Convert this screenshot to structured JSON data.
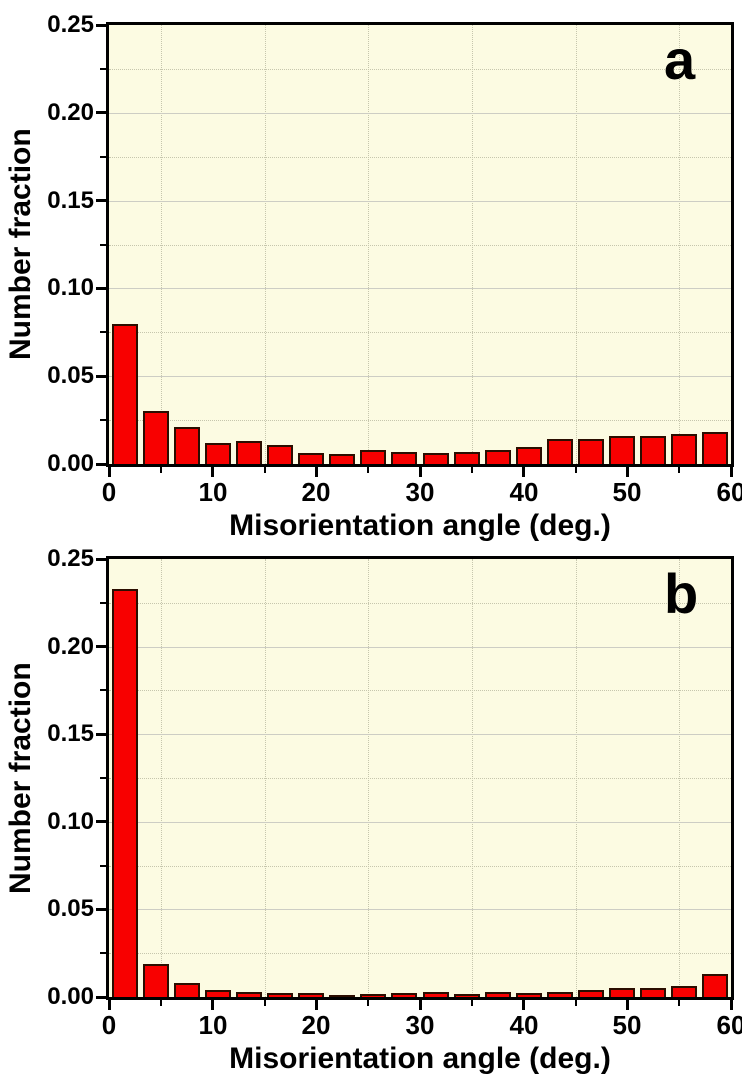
{
  "figure": {
    "description": "Two stacked misorientation-angle histograms",
    "panel_labels": [
      "a",
      "b"
    ]
  },
  "style": {
    "page_bg": "#ffffff",
    "plot_bg": "#fcfbe2",
    "bar_fill": "#f80000",
    "bar_border": "#2b0d00",
    "grid_major": "#cdcdc4",
    "grid_minor": "#c6c6ad",
    "axis_color": "#000000",
    "text_color": "#000000"
  },
  "chart_data": [
    {
      "type": "bar",
      "panel_label": "a",
      "xlabel": "Misorientation angle (deg.)",
      "ylabel": "Number fraction",
      "xlim": [
        0,
        60
      ],
      "ylim": [
        0,
        0.25
      ],
      "x_tick_labels": [
        "0",
        "10",
        "20",
        "30",
        "40",
        "50",
        "60"
      ],
      "x_tick_values": [
        0,
        10,
        20,
        30,
        40,
        50,
        60
      ],
      "x_minor_tick_values": [
        5,
        15,
        25,
        35,
        45,
        55
      ],
      "y_tick_labels": [
        "0.00",
        "0.05",
        "0.10",
        "0.15",
        "0.20",
        "0.25"
      ],
      "y_tick_values": [
        0.0,
        0.05,
        0.1,
        0.15,
        0.2,
        0.25
      ],
      "y_minor_tick_values": [
        0.025,
        0.075,
        0.125,
        0.175,
        0.225
      ],
      "grid": "major-solid, minor-dotted",
      "legend_position": "none",
      "bin_width_deg": 3,
      "bin_edges_deg": [
        0,
        3,
        6,
        9,
        12,
        15,
        18,
        21,
        24,
        27,
        30,
        33,
        36,
        39,
        42,
        45,
        48,
        51,
        54,
        57,
        60
      ],
      "values": [
        0.08,
        0.03,
        0.021,
        0.012,
        0.013,
        0.011,
        0.006,
        0.0055,
        0.008,
        0.007,
        0.006,
        0.007,
        0.008,
        0.0095,
        0.014,
        0.014,
        0.016,
        0.016,
        0.017,
        0.018
      ]
    },
    {
      "type": "bar",
      "panel_label": "b",
      "xlabel": "Misorientation angle (deg.)",
      "ylabel": "Number fraction",
      "xlim": [
        0,
        60
      ],
      "ylim": [
        0,
        0.25
      ],
      "x_tick_labels": [
        "0",
        "10",
        "20",
        "30",
        "40",
        "50",
        "60"
      ],
      "x_tick_values": [
        0,
        10,
        20,
        30,
        40,
        50,
        60
      ],
      "x_minor_tick_values": [
        5,
        15,
        25,
        35,
        45,
        55
      ],
      "y_tick_labels": [
        "0.00",
        "0.05",
        "0.10",
        "0.15",
        "0.20",
        "0.25"
      ],
      "y_tick_values": [
        0.0,
        0.05,
        0.1,
        0.15,
        0.2,
        0.25
      ],
      "y_minor_tick_values": [
        0.025,
        0.075,
        0.125,
        0.175,
        0.225
      ],
      "grid": "major-solid, minor-dotted",
      "legend_position": "none",
      "bin_width_deg": 3,
      "bin_edges_deg": [
        0,
        3,
        6,
        9,
        12,
        15,
        18,
        21,
        24,
        27,
        30,
        33,
        36,
        39,
        42,
        45,
        48,
        51,
        54,
        57,
        60
      ],
      "values": [
        0.233,
        0.019,
        0.008,
        0.004,
        0.003,
        0.002,
        0.002,
        0.001,
        0.0015,
        0.002,
        0.003,
        0.0015,
        0.003,
        0.002,
        0.003,
        0.004,
        0.005,
        0.005,
        0.006,
        0.013
      ]
    }
  ]
}
